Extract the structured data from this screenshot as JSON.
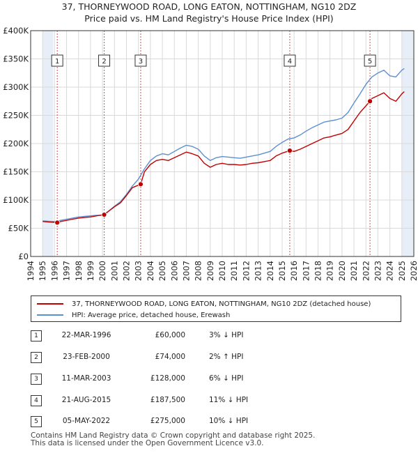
{
  "title_line1": "37, THORNEYWOOD ROAD, LONG EATON, NOTTINGHAM, NG10 2DZ",
  "title_line2": "Price paid vs. HM Land Registry's House Price Index (HPI)",
  "colors": {
    "price": "#c00000",
    "hpi": "#5b8fd1",
    "shade": "#e8eef7",
    "grid": "#d9d9d9",
    "vline": "#d05050"
  },
  "chart_data": {
    "type": "line",
    "title": "Price paid vs. HM Land Registry's House Price Index (HPI)",
    "xlim": [
      1994,
      2026
    ],
    "ylim": [
      0,
      400000
    ],
    "x_ticks": [
      "1994",
      "1995",
      "1996",
      "1997",
      "1998",
      "1999",
      "2000",
      "2001",
      "2002",
      "2003",
      "2004",
      "2005",
      "2006",
      "2007",
      "2008",
      "2009",
      "2010",
      "2011",
      "2012",
      "2013",
      "2014",
      "2015",
      "2016",
      "2017",
      "2018",
      "2019",
      "2020",
      "2021",
      "2022",
      "2023",
      "2024",
      "2025",
      "2026"
    ],
    "y_ticks": [
      {
        "value": 0,
        "label": "£0"
      },
      {
        "value": 50000,
        "label": "£50K"
      },
      {
        "value": 100000,
        "label": "£100K"
      },
      {
        "value": 150000,
        "label": "£150K"
      },
      {
        "value": 200000,
        "label": "£200K"
      },
      {
        "value": 250000,
        "label": "£250K"
      },
      {
        "value": 300000,
        "label": "£300K"
      },
      {
        "value": 350000,
        "label": "£350K"
      },
      {
        "value": 400000,
        "label": "£400K"
      }
    ],
    "shaded_ranges": [
      [
        1995.0,
        1995.9
      ],
      [
        2025.0,
        2026.0
      ]
    ],
    "series": [
      {
        "name": "37, THORNEYWOOD ROAD, LONG EATON, NOTTINGHAM, NG10 2DZ (detached house)",
        "color": "#c00000",
        "x": [
          1995.0,
          1995.5,
          1996.22,
          1996.5,
          1997.0,
          1997.5,
          1998.0,
          1998.5,
          1999.0,
          1999.5,
          2000.14,
          2000.5,
          2001.0,
          2001.5,
          2002.0,
          2002.5,
          2003.19,
          2003.5,
          2004.0,
          2004.5,
          2005.0,
          2005.5,
          2006.0,
          2006.5,
          2007.0,
          2007.5,
          2008.0,
          2008.5,
          2009.0,
          2009.5,
          2010.0,
          2010.5,
          2011.0,
          2011.5,
          2012.0,
          2012.5,
          2013.0,
          2013.5,
          2014.0,
          2014.5,
          2015.0,
          2015.64,
          2016.0,
          2016.5,
          2017.0,
          2017.5,
          2018.0,
          2018.5,
          2019.0,
          2019.5,
          2020.0,
          2020.5,
          2021.0,
          2021.5,
          2022.34,
          2022.5,
          2023.0,
          2023.5,
          2024.0,
          2024.5,
          2025.0,
          2025.2
        ],
        "values": [
          62000,
          61000,
          60000,
          62000,
          64000,
          66000,
          68000,
          69000,
          70000,
          72000,
          74000,
          80000,
          88000,
          95000,
          108000,
          122000,
          128000,
          150000,
          163000,
          170000,
          172000,
          170000,
          175000,
          180000,
          185000,
          182000,
          178000,
          165000,
          158000,
          163000,
          165000,
          163000,
          163000,
          162000,
          163000,
          165000,
          166000,
          168000,
          170000,
          178000,
          183000,
          187500,
          186000,
          190000,
          195000,
          200000,
          205000,
          210000,
          212000,
          215000,
          218000,
          225000,
          240000,
          255000,
          275000,
          280000,
          285000,
          290000,
          280000,
          275000,
          288000,
          292000
        ]
      },
      {
        "name": "HPI: Average price, detached house, Erewash",
        "color": "#5b8fd1",
        "x": [
          1995.0,
          1995.5,
          1996.0,
          1996.5,
          1997.0,
          1997.5,
          1998.0,
          1998.5,
          1999.0,
          1999.5,
          2000.0,
          2000.5,
          2001.0,
          2001.5,
          2002.0,
          2002.5,
          2003.0,
          2003.5,
          2004.0,
          2004.5,
          2005.0,
          2005.5,
          2006.0,
          2006.5,
          2007.0,
          2007.5,
          2008.0,
          2008.5,
          2009.0,
          2009.5,
          2010.0,
          2010.5,
          2011.0,
          2011.5,
          2012.0,
          2012.5,
          2013.0,
          2013.5,
          2014.0,
          2014.5,
          2015.0,
          2015.5,
          2016.0,
          2016.5,
          2017.0,
          2017.5,
          2018.0,
          2018.5,
          2019.0,
          2019.5,
          2020.0,
          2020.5,
          2021.0,
          2021.5,
          2022.0,
          2022.5,
          2023.0,
          2023.5,
          2024.0,
          2024.5,
          2025.0,
          2025.2
        ],
        "values": [
          63000,
          62500,
          62000,
          64000,
          66000,
          68000,
          70000,
          71000,
          72000,
          73000,
          73000,
          80000,
          89000,
          97000,
          110000,
          125000,
          137000,
          155000,
          170000,
          178000,
          182000,
          180000,
          186000,
          192000,
          197000,
          195000,
          190000,
          178000,
          170000,
          175000,
          177000,
          176000,
          175000,
          174000,
          176000,
          178000,
          180000,
          183000,
          186000,
          195000,
          202000,
          208000,
          210000,
          215000,
          222000,
          228000,
          233000,
          238000,
          240000,
          242000,
          245000,
          255000,
          272000,
          288000,
          305000,
          318000,
          325000,
          330000,
          320000,
          318000,
          330000,
          333000
        ]
      }
    ],
    "transactions": [
      {
        "label": "1",
        "x": 1996.22,
        "value": 60000
      },
      {
        "label": "2",
        "x": 2000.14,
        "value": 74000
      },
      {
        "label": "3",
        "x": 2003.19,
        "value": 128000
      },
      {
        "label": "4",
        "x": 2015.64,
        "value": 187500
      },
      {
        "label": "5",
        "x": 2022.34,
        "value": 275000
      }
    ]
  },
  "legend": {
    "price_label": "37, THORNEYWOOD ROAD, LONG EATON, NOTTINGHAM, NG10 2DZ (detached house)",
    "hpi_label": "HPI: Average price, detached house, Erewash"
  },
  "table": [
    {
      "num": "1",
      "date": "22-MAR-1996",
      "price": "£60,000",
      "hpi": "3% ↓ HPI"
    },
    {
      "num": "2",
      "date": "23-FEB-2000",
      "price": "£74,000",
      "hpi": "2% ↑ HPI"
    },
    {
      "num": "3",
      "date": "11-MAR-2003",
      "price": "£128,000",
      "hpi": "6% ↓ HPI"
    },
    {
      "num": "4",
      "date": "21-AUG-2015",
      "price": "£187,500",
      "hpi": "11% ↓ HPI"
    },
    {
      "num": "5",
      "date": "05-MAY-2022",
      "price": "£275,000",
      "hpi": "10% ↓ HPI"
    }
  ],
  "footer_line1": "Contains HM Land Registry data © Crown copyright and database right 2025.",
  "footer_line2": "This data is licensed under the Open Government Licence v3.0."
}
